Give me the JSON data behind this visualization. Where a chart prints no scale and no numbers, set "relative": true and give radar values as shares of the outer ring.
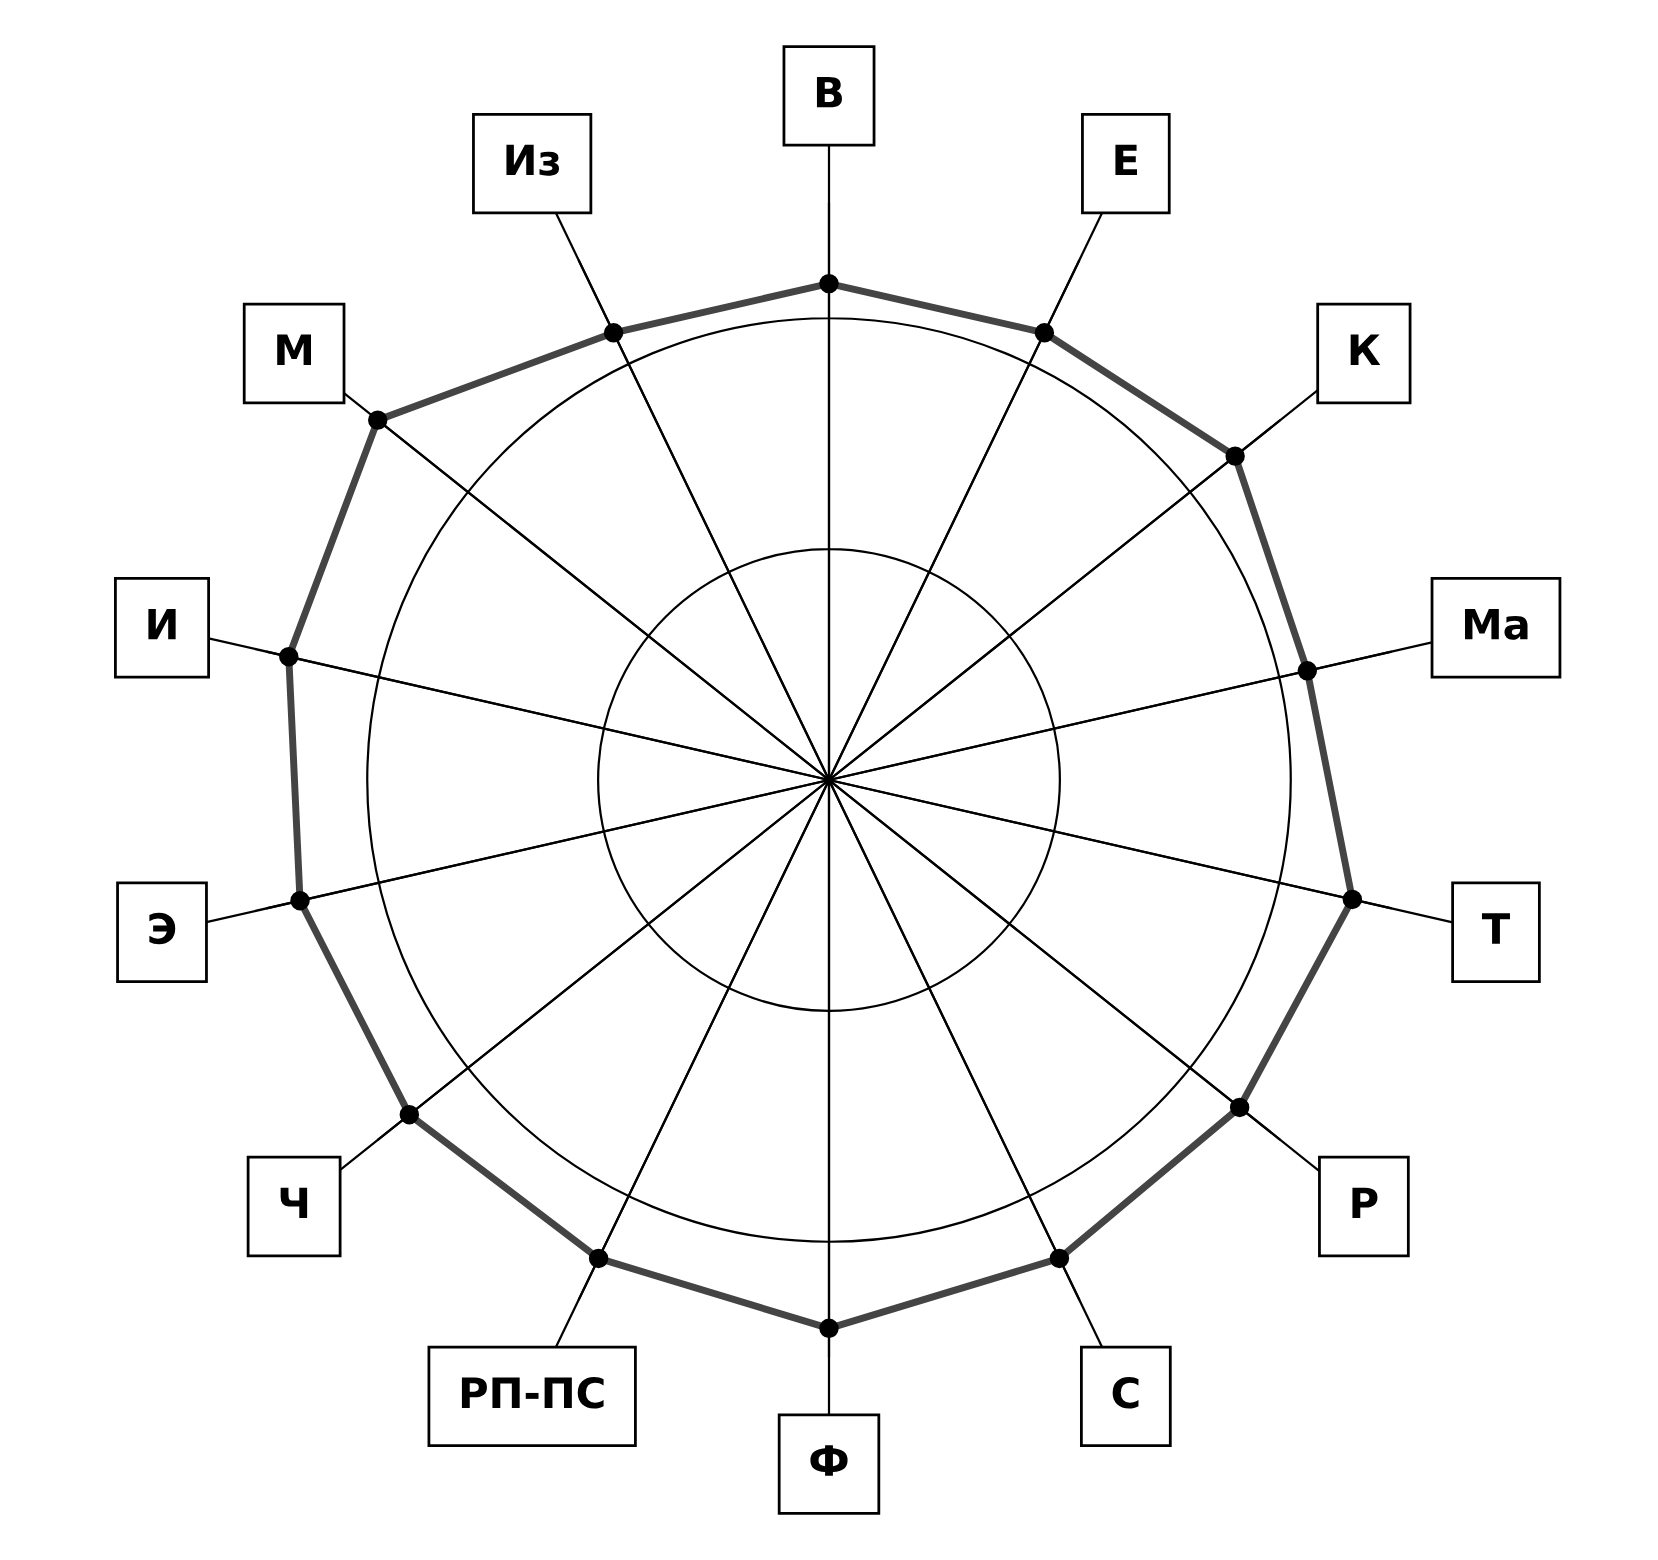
{
  "chart_data": {
    "type": "radar",
    "relative": true,
    "categories": [
      "В",
      "Е",
      "К",
      "Ма",
      "Т",
      "Р",
      "С",
      "Ф",
      "РП-ПС",
      "Ч",
      "Э",
      "И",
      "М",
      "Из"
    ],
    "series": [
      {
        "color": "#444444",
        "values": [
          0.86,
          0.86,
          0.9,
          0.85,
          0.93,
          0.91,
          0.92,
          0.95,
          0.92,
          0.93,
          0.94,
          0.96,
          1.0,
          0.86
        ]
      }
    ],
    "grid": true,
    "marker": "circle",
    "line_style": "solid"
  }
}
